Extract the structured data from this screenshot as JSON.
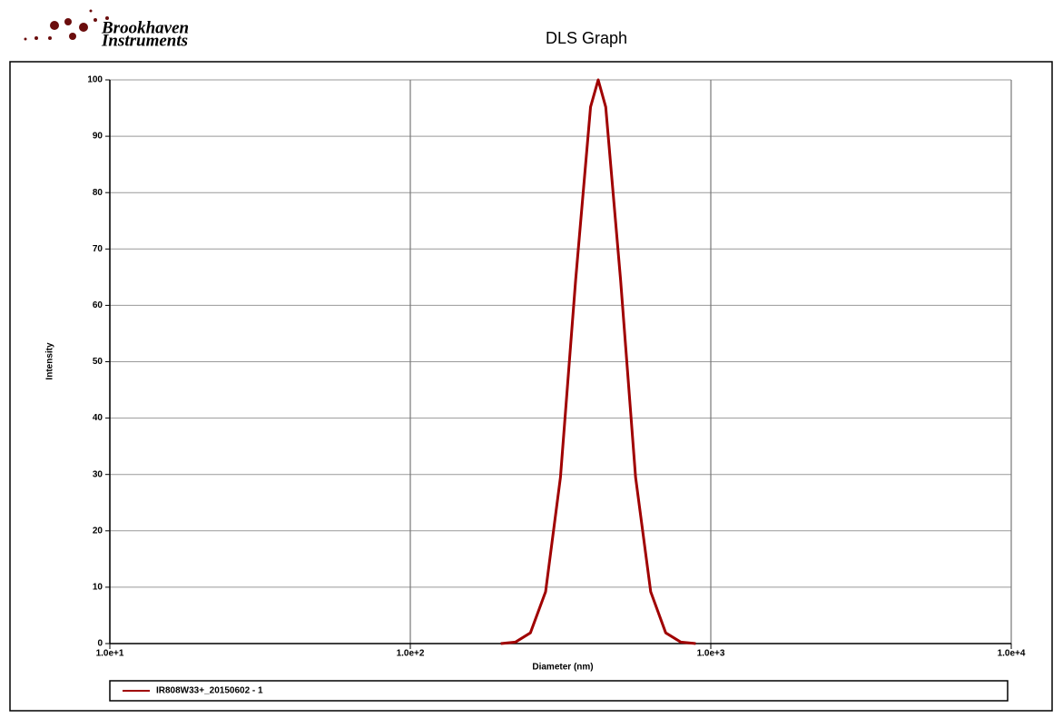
{
  "logo": {
    "line1": "Brookhaven",
    "line2": "Instruments"
  },
  "chart_data": {
    "type": "line",
    "title": "DLS Graph",
    "x_label": "Diameter (nm)",
    "y_label": "Intensity",
    "x": [
      200,
      224,
      251,
      282,
      316,
      355,
      398,
      422,
      447,
      501,
      562,
      631,
      708,
      794,
      891
    ],
    "series": [
      {
        "name": "IR808W33+_20150602 - 1",
        "color": "#a00000",
        "values": [
          0,
          0.27,
          1.9,
          9.2,
          29.5,
          64.5,
          95.2,
          100,
          95.2,
          64.5,
          29.5,
          9.2,
          1.9,
          0.27,
          0
        ]
      }
    ],
    "x_scale": "log",
    "xlim": [
      10,
      10000
    ],
    "xticks": [
      {
        "value": 10,
        "label": "1.0e+1"
      },
      {
        "value": 100,
        "label": "1.0e+2"
      },
      {
        "value": 1000,
        "label": "1.0e+3"
      },
      {
        "value": 10000,
        "label": "1.0e+4"
      }
    ],
    "ylim": [
      0,
      100
    ],
    "yticks": [
      0,
      10,
      20,
      30,
      40,
      50,
      60,
      70,
      80,
      90,
      100
    ],
    "grid": true
  }
}
